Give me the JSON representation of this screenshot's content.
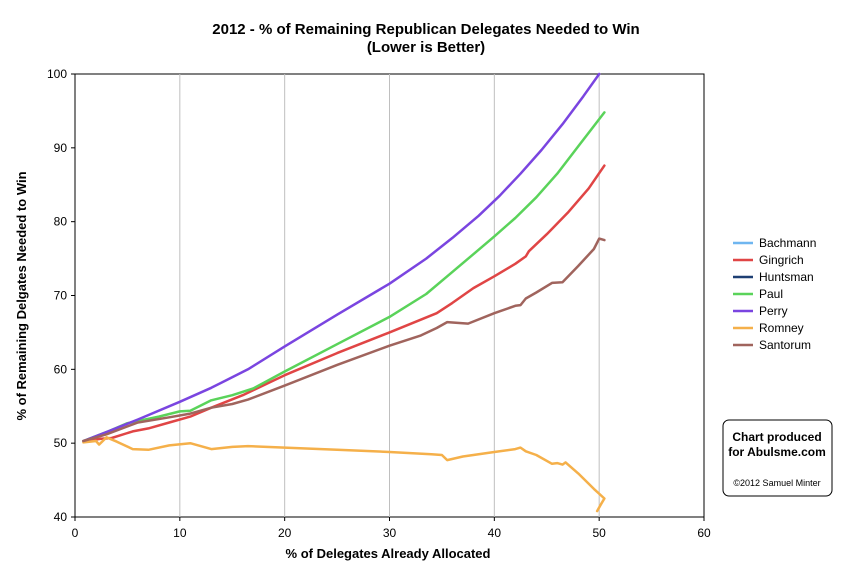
{
  "chart_data": {
    "type": "line",
    "title": "2012 - % of Remaining Republican Delegates Needed to Win",
    "subtitle": "(Lower is Better)",
    "xlabel": "% of Delegates Already Allocated",
    "ylabel": "% of Remaining Delgates Needed to Win",
    "xlim": [
      0,
      60
    ],
    "ylim": [
      40,
      100
    ],
    "x_ticks": [
      0,
      10,
      20,
      30,
      40,
      50,
      60
    ],
    "y_ticks": [
      40,
      50,
      60,
      70,
      80,
      90,
      100
    ],
    "grid": "vertical",
    "legend_position": "right",
    "series": [
      {
        "name": "Bachmann",
        "color": "#6fb6f0",
        "points": []
      },
      {
        "name": "Gingrich",
        "color": "#e04545",
        "points": [
          [
            0.8,
            50.3
          ],
          [
            2.5,
            50.6
          ],
          [
            3.5,
            50.7
          ],
          [
            5.5,
            51.6
          ],
          [
            7,
            52.0
          ],
          [
            9,
            52.8
          ],
          [
            11,
            53.6
          ],
          [
            13,
            54.8
          ],
          [
            16,
            56.5
          ],
          [
            20,
            59.2
          ],
          [
            25,
            62.2
          ],
          [
            30,
            65.0
          ],
          [
            34.5,
            67.6
          ],
          [
            36,
            69.0
          ],
          [
            38,
            71.0
          ],
          [
            40,
            72.6
          ],
          [
            42,
            74.3
          ],
          [
            43,
            75.3
          ],
          [
            43.3,
            76.0
          ],
          [
            45,
            78.3
          ],
          [
            47,
            81.2
          ],
          [
            49,
            84.5
          ],
          [
            50.5,
            87.6
          ]
        ]
      },
      {
        "name": "Huntsman",
        "color": "#1e3f73",
        "points": []
      },
      {
        "name": "Paul",
        "color": "#5ad35a",
        "points": [
          [
            0.8,
            50.3
          ],
          [
            3,
            51.5
          ],
          [
            5,
            52.7
          ],
          [
            8,
            53.6
          ],
          [
            10,
            54.3
          ],
          [
            11,
            54.4
          ],
          [
            13,
            55.8
          ],
          [
            15,
            56.5
          ],
          [
            17,
            57.4
          ],
          [
            20,
            59.7
          ],
          [
            25,
            63.4
          ],
          [
            30,
            67.1
          ],
          [
            33.5,
            70.2
          ],
          [
            35.5,
            72.6
          ],
          [
            38,
            75.6
          ],
          [
            40,
            78.0
          ],
          [
            42,
            80.5
          ],
          [
            44,
            83.3
          ],
          [
            46,
            86.5
          ],
          [
            48,
            90.2
          ],
          [
            50.5,
            94.8
          ]
        ]
      },
      {
        "name": "Perry",
        "color": "#7a45e0",
        "points": [
          [
            0.8,
            50.3
          ],
          [
            3,
            51.5
          ],
          [
            6,
            53.2
          ],
          [
            10,
            55.6
          ],
          [
            13,
            57.5
          ],
          [
            16.5,
            60.0
          ],
          [
            20,
            63.1
          ],
          [
            25,
            67.4
          ],
          [
            30,
            71.6
          ],
          [
            33.5,
            75.0
          ],
          [
            36,
            77.8
          ],
          [
            38.5,
            80.8
          ],
          [
            40.5,
            83.5
          ],
          [
            42.5,
            86.5
          ],
          [
            44.5,
            89.7
          ],
          [
            46.5,
            93.2
          ],
          [
            48.5,
            97.0
          ],
          [
            50,
            100
          ]
        ]
      },
      {
        "name": "Romney",
        "color": "#f5b04a",
        "points": [
          [
            0.8,
            50.1
          ],
          [
            2,
            50.3
          ],
          [
            2.3,
            49.8
          ],
          [
            3,
            50.8
          ],
          [
            4,
            50.2
          ],
          [
            5.5,
            49.2
          ],
          [
            7,
            49.1
          ],
          [
            9,
            49.7
          ],
          [
            11,
            50.0
          ],
          [
            13,
            49.2
          ],
          [
            15,
            49.5
          ],
          [
            16.5,
            49.6
          ],
          [
            20,
            49.4
          ],
          [
            25,
            49.1
          ],
          [
            30,
            48.8
          ],
          [
            34,
            48.5
          ],
          [
            35,
            48.4
          ],
          [
            35.5,
            47.7
          ],
          [
            37,
            48.2
          ],
          [
            40,
            48.8
          ],
          [
            42,
            49.2
          ],
          [
            42.5,
            49.4
          ],
          [
            43,
            48.9
          ],
          [
            44,
            48.4
          ],
          [
            45.5,
            47.2
          ],
          [
            46,
            47.3
          ],
          [
            46.5,
            47.1
          ],
          [
            46.8,
            47.4
          ],
          [
            48,
            45.9
          ],
          [
            49.5,
            43.8
          ],
          [
            50.5,
            42.5
          ],
          [
            50.2,
            41.8
          ],
          [
            49.8,
            40.8
          ]
        ]
      },
      {
        "name": "Santorum",
        "color": "#a0645d",
        "points": [
          [
            0.8,
            50.3
          ],
          [
            3,
            51.2
          ],
          [
            6,
            52.8
          ],
          [
            9,
            53.5
          ],
          [
            11,
            54.0
          ],
          [
            13,
            54.8
          ],
          [
            15,
            55.3
          ],
          [
            16.5,
            55.9
          ],
          [
            20,
            57.8
          ],
          [
            25,
            60.6
          ],
          [
            30,
            63.2
          ],
          [
            33,
            64.6
          ],
          [
            34.5,
            65.6
          ],
          [
            35.5,
            66.4
          ],
          [
            37.5,
            66.2
          ],
          [
            40,
            67.6
          ],
          [
            42,
            68.6
          ],
          [
            42.5,
            68.7
          ],
          [
            43,
            69.6
          ],
          [
            44,
            70.4
          ],
          [
            45.5,
            71.7
          ],
          [
            46.5,
            71.8
          ],
          [
            48,
            74.0
          ],
          [
            49.5,
            76.3
          ],
          [
            50,
            77.7
          ],
          [
            50.5,
            77.5
          ]
        ]
      }
    ]
  },
  "credit": {
    "line1": "Chart produced",
    "line2": "for Abulsme.com",
    "copyright": "©2012 Samuel Minter"
  }
}
